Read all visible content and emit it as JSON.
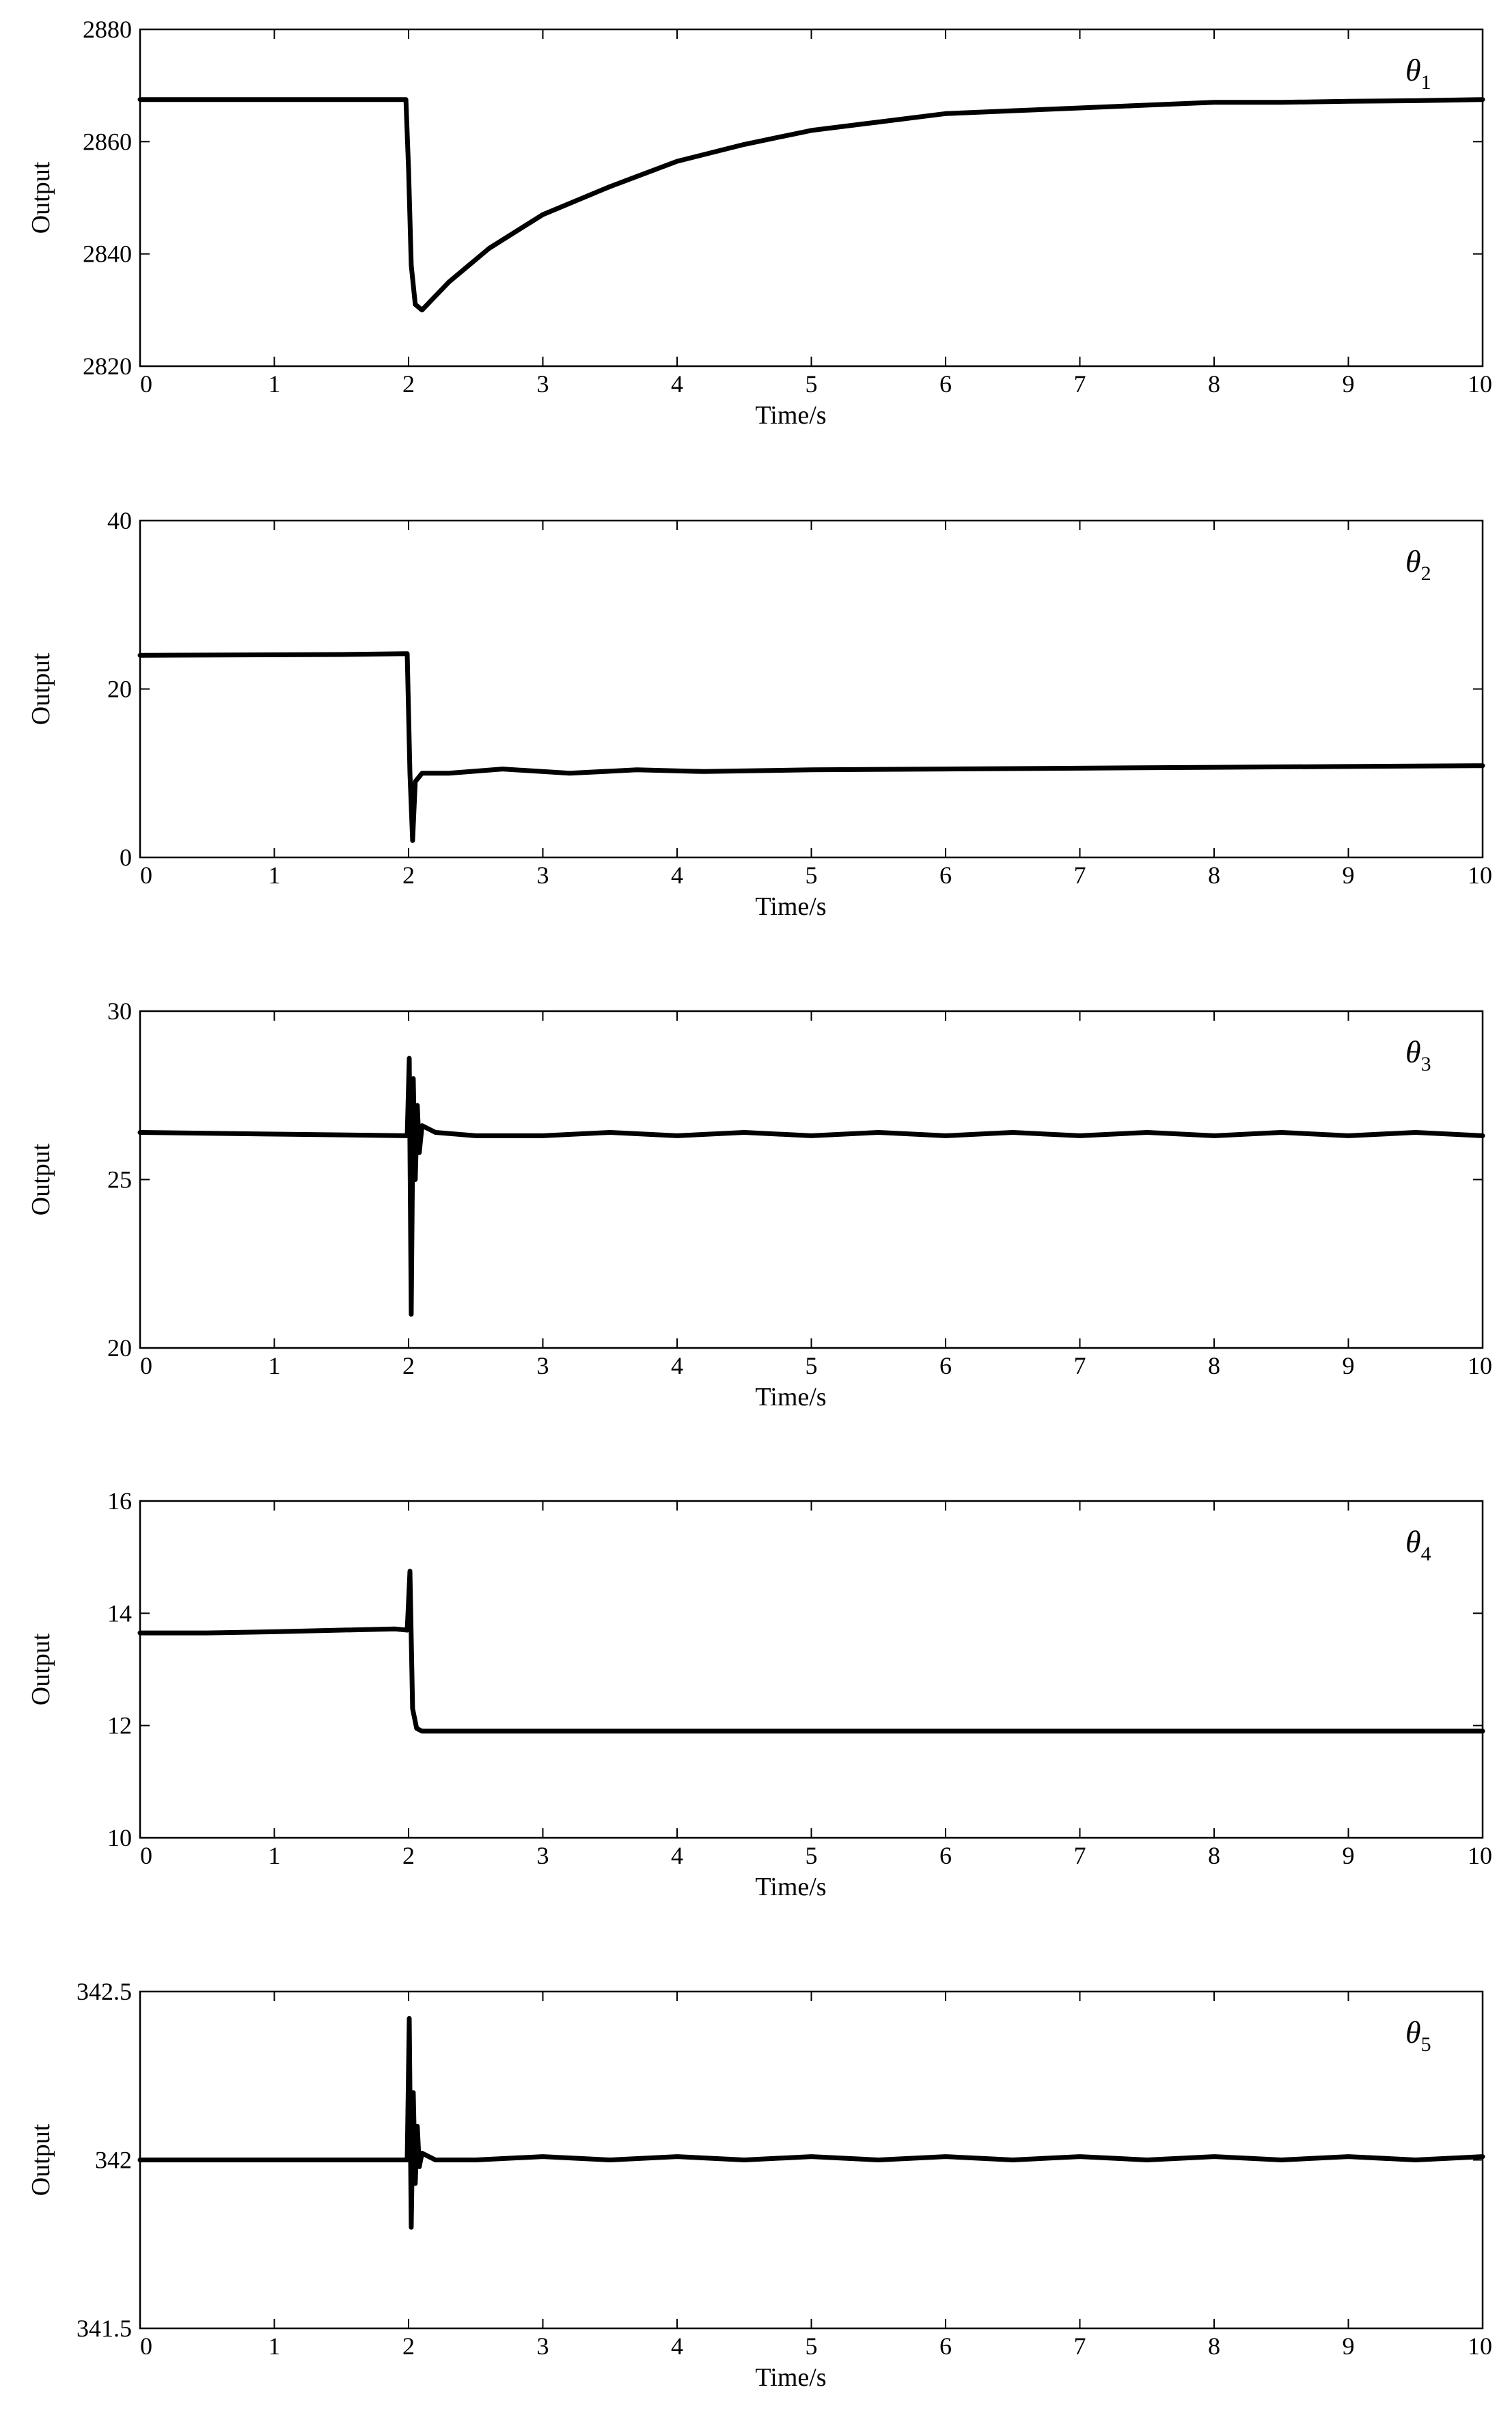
{
  "chart_data": [
    {
      "type": "line",
      "series": [
        {
          "name": "θ1",
          "symbol": "θ",
          "subscript": "1",
          "x": [
            0,
            1.98,
            2.0,
            2.02,
            2.05,
            2.1,
            2.3,
            2.6,
            3.0,
            3.5,
            4.0,
            4.5,
            5.0,
            5.5,
            6.0,
            6.5,
            7.0,
            7.5,
            8.0,
            8.5,
            9.0,
            9.5,
            10.0
          ],
          "y": [
            2867.5,
            2867.5,
            2855,
            2838,
            2831,
            2830,
            2835,
            2841,
            2847,
            2852,
            2856.5,
            2859.5,
            2862,
            2863.5,
            2865,
            2865.5,
            2866,
            2866.5,
            2867,
            2867,
            2867.2,
            2867.3,
            2867.5
          ]
        }
      ],
      "xlabel": "Time/s",
      "ylabel": "Output",
      "xlim": [
        0,
        10
      ],
      "ylim": [
        2820,
        2880
      ],
      "xticks": [
        "0",
        "1",
        "2",
        "3",
        "4",
        "5",
        "6",
        "7",
        "8",
        "9",
        "10"
      ],
      "yticks": [
        "2820",
        "2840",
        "2860",
        "2880"
      ],
      "grid": false,
      "legend": "top-right"
    },
    {
      "type": "line",
      "series": [
        {
          "name": "θ2",
          "symbol": "θ",
          "subscript": "2",
          "x": [
            0,
            1.5,
            1.99,
            2.01,
            2.03,
            2.05,
            2.1,
            2.3,
            2.7,
            3.2,
            3.7,
            4.2,
            5.0,
            6.0,
            7.0,
            8.0,
            9.0,
            10.0
          ],
          "y": [
            24.0,
            24.1,
            24.2,
            10,
            2,
            9,
            10,
            10,
            10.5,
            10,
            10.4,
            10.2,
            10.4,
            10.5,
            10.6,
            10.7,
            10.8,
            10.9
          ]
        }
      ],
      "xlabel": "Time/s",
      "ylabel": "Output",
      "xlim": [
        0,
        10
      ],
      "ylim": [
        0,
        40
      ],
      "xticks": [
        "0",
        "1",
        "2",
        "3",
        "4",
        "5",
        "6",
        "7",
        "8",
        "9",
        "10"
      ],
      "yticks": [
        "0",
        "20",
        "40"
      ],
      "grid": false,
      "legend": "top-right"
    },
    {
      "type": "line",
      "series": [
        {
          "name": "θ3",
          "symbol": "θ",
          "subscript": "3",
          "x": [
            0,
            1.99,
            2.005,
            2.02,
            2.035,
            2.05,
            2.065,
            2.08,
            2.1,
            2.2,
            2.5,
            3.0,
            3.5,
            4.0,
            4.5,
            5.0,
            5.5,
            6.0,
            6.5,
            7.0,
            7.5,
            8.0,
            8.5,
            9.0,
            9.5,
            10.0
          ],
          "y": [
            26.4,
            26.3,
            28.6,
            21.0,
            28.0,
            25.0,
            27.2,
            25.8,
            26.6,
            26.4,
            26.3,
            26.3,
            26.4,
            26.3,
            26.4,
            26.3,
            26.4,
            26.3,
            26.4,
            26.3,
            26.4,
            26.3,
            26.4,
            26.3,
            26.4,
            26.3
          ]
        }
      ],
      "xlabel": "Time/s",
      "ylabel": "Output",
      "xlim": [
        0,
        10
      ],
      "ylim": [
        20,
        30
      ],
      "xticks": [
        "0",
        "1",
        "2",
        "3",
        "4",
        "5",
        "6",
        "7",
        "8",
        "9",
        "10"
      ],
      "yticks": [
        "20",
        "25",
        "30"
      ],
      "grid": false,
      "legend": "top-right"
    },
    {
      "type": "line",
      "series": [
        {
          "name": "θ4",
          "symbol": "θ",
          "subscript": "4",
          "x": [
            0,
            0.5,
            1.0,
            1.5,
            1.9,
            1.99,
            2.01,
            2.03,
            2.06,
            2.1,
            2.5,
            3.0,
            4.0,
            5.0,
            6.0,
            7.0,
            8.0,
            9.0,
            10.0
          ],
          "y": [
            13.65,
            13.65,
            13.67,
            13.7,
            13.72,
            13.7,
            14.75,
            12.3,
            11.95,
            11.9,
            11.9,
            11.9,
            11.9,
            11.9,
            11.9,
            11.9,
            11.9,
            11.9,
            11.9
          ]
        }
      ],
      "xlabel": "Time/s",
      "ylabel": "Output",
      "xlim": [
        0,
        10
      ],
      "ylim": [
        10,
        16
      ],
      "xticks": [
        "0",
        "1",
        "2",
        "3",
        "4",
        "5",
        "6",
        "7",
        "8",
        "9",
        "10"
      ],
      "yticks": [
        "10",
        "12",
        "14",
        "16"
      ],
      "grid": false,
      "legend": "top-right"
    },
    {
      "type": "line",
      "series": [
        {
          "name": "θ5",
          "symbol": "θ",
          "subscript": "5",
          "x": [
            0,
            1.99,
            2.005,
            2.02,
            2.035,
            2.05,
            2.065,
            2.08,
            2.1,
            2.2,
            2.5,
            3.0,
            3.5,
            4.0,
            4.5,
            5.0,
            5.5,
            6.0,
            6.5,
            7.0,
            7.5,
            8.0,
            8.5,
            9.0,
            9.5,
            10.0
          ],
          "y": [
            342.0,
            342.0,
            342.42,
            341.8,
            342.2,
            341.93,
            342.1,
            341.98,
            342.02,
            342.0,
            342.0,
            342.01,
            342.0,
            342.01,
            342.0,
            342.01,
            342.0,
            342.01,
            342.0,
            342.01,
            342.0,
            342.01,
            342.0,
            342.01,
            342.0,
            342.01
          ]
        }
      ],
      "xlabel": "Time/s",
      "ylabel": "Output",
      "xlim": [
        0,
        10
      ],
      "ylim": [
        341.5,
        342.5
      ],
      "xticks": [
        "0",
        "1",
        "2",
        "3",
        "4",
        "5",
        "6",
        "7",
        "8",
        "9",
        "10"
      ],
      "yticks": [
        "341.5",
        "342",
        "342.5"
      ],
      "grid": false,
      "legend": "top-right"
    }
  ]
}
